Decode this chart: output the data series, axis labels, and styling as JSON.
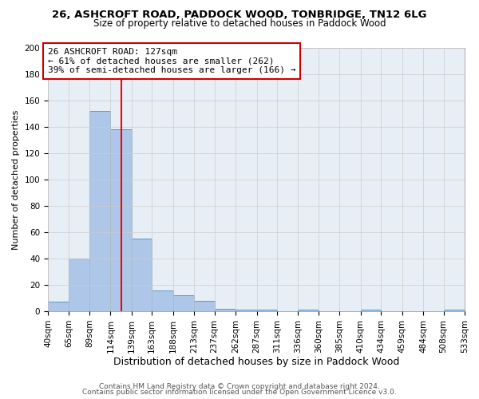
{
  "title1": "26, ASHCROFT ROAD, PADDOCK WOOD, TONBRIDGE, TN12 6LG",
  "title2": "Size of property relative to detached houses in Paddock Wood",
  "xlabel": "Distribution of detached houses by size in Paddock Wood",
  "ylabel": "Number of detached properties",
  "bin_edges": [
    40,
    65,
    89,
    114,
    139,
    163,
    188,
    213,
    237,
    262,
    287,
    311,
    336,
    360,
    385,
    410,
    434,
    459,
    484,
    508,
    533
  ],
  "bar_heights": [
    7,
    40,
    152,
    138,
    55,
    16,
    12,
    8,
    2,
    1,
    1,
    0,
    1,
    0,
    0,
    1,
    0,
    0,
    0,
    1
  ],
  "bar_color": "#aec6e8",
  "bar_edge_color": "#5a9ac8",
  "grid_color": "#cccccc",
  "bg_color": "#e8eef5",
  "property_size": 127,
  "vline_color": "red",
  "annotation_line1": "26 ASHCROFT ROAD: 127sqm",
  "annotation_line2": "← 61% of detached houses are smaller (262)",
  "annotation_line3": "39% of semi-detached houses are larger (166) →",
  "annotation_box_color": "white",
  "annotation_border_color": "#cc0000",
  "footer1": "Contains HM Land Registry data © Crown copyright and database right 2024.",
  "footer2": "Contains public sector information licensed under the Open Government Licence v3.0.",
  "ylim": [
    0,
    200
  ],
  "title1_fontsize": 9.5,
  "title2_fontsize": 8.5,
  "xlabel_fontsize": 9,
  "ylabel_fontsize": 8,
  "tick_fontsize": 7.5,
  "annotation_fontsize": 8,
  "footer_fontsize": 6.5
}
